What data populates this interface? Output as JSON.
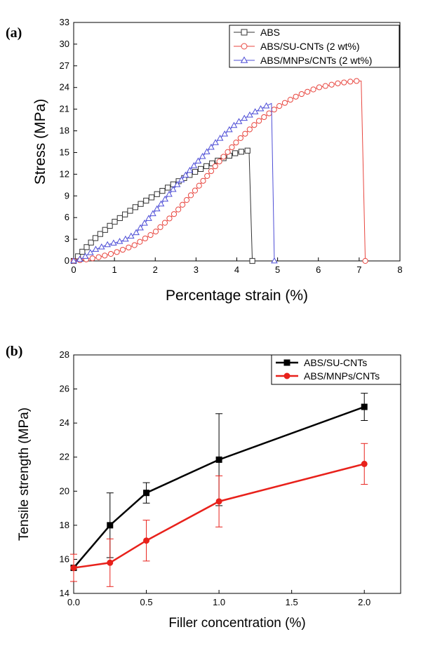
{
  "panels": {
    "a": {
      "label": "(a)"
    },
    "b": {
      "label": "(b)"
    }
  },
  "chart_data": [
    {
      "type": "line",
      "xlabel": "Percentage strain (%)",
      "ylabel": "Stress (MPa)",
      "xlim": [
        0,
        8
      ],
      "ylim": [
        0,
        33
      ],
      "xticks": [
        0,
        1,
        2,
        3,
        4,
        5,
        6,
        7,
        8
      ],
      "yticks": [
        0,
        3,
        6,
        9,
        12,
        15,
        18,
        21,
        24,
        27,
        30,
        33
      ],
      "grid": false,
      "legend": "top-right",
      "series": [
        {
          "name": "ABS",
          "color": "#333333",
          "marker": "square",
          "x": [
            0,
            0.2,
            0.5,
            1.0,
            1.5,
            2.0,
            2.5,
            3.0,
            3.5,
            4.0,
            4.3,
            4.38
          ],
          "y": [
            0,
            1.2,
            3.0,
            5.4,
            7.4,
            9.1,
            10.8,
            12.4,
            13.8,
            15.0,
            15.3,
            0
          ]
        },
        {
          "name": "ABS/SU-CNTs (2 wt%)",
          "color": "#e8463f",
          "marker": "circle",
          "x": [
            0,
            0.3,
            0.6,
            1.0,
            1.5,
            2.0,
            2.5,
            3.0,
            3.5,
            4.0,
            4.5,
            5.0,
            5.5,
            6.0,
            6.5,
            6.9,
            7.05,
            7.15
          ],
          "y": [
            0,
            0.2,
            0.5,
            1.1,
            2.2,
            4.0,
            6.7,
            9.9,
            13.3,
            16.5,
            19.2,
            21.3,
            22.9,
            24.0,
            24.6,
            24.9,
            24.9,
            0
          ]
        },
        {
          "name": "ABS/MNPs/CNTs (2 wt%)",
          "color": "#4d4dd6",
          "marker": "triangle",
          "x": [
            0,
            0.2,
            0.5,
            0.8,
            1.0,
            1.2,
            1.5,
            2.0,
            2.5,
            3.0,
            3.5,
            4.0,
            4.5,
            4.85,
            4.92
          ],
          "y": [
            0,
            0.3,
            1.5,
            2.2,
            2.5,
            2.8,
            3.7,
            6.9,
            10.3,
            13.5,
            16.5,
            19.1,
            20.8,
            21.8,
            0
          ]
        }
      ]
    },
    {
      "type": "line",
      "xlabel": "Filler concentration (%)",
      "ylabel": "Tensile strength (MPa)",
      "xlim": [
        0,
        2.25
      ],
      "ylim": [
        14,
        28
      ],
      "xticks": [
        0.0,
        0.5,
        1.0,
        1.5,
        2.0
      ],
      "xtick_labels": [
        "0.0",
        "0.5",
        "1.0",
        "1.5",
        "2.0"
      ],
      "yticks": [
        14,
        16,
        18,
        20,
        22,
        24,
        26,
        28
      ],
      "grid": false,
      "legend": "top-right",
      "categories": [
        0,
        0.25,
        0.5,
        1.0,
        2.0
      ],
      "series": [
        {
          "name": "ABS/SU-CNTs",
          "color": "#000000",
          "marker": "square",
          "values": [
            15.5,
            18.0,
            19.9,
            21.85,
            24.95
          ],
          "error": [
            0.0,
            1.9,
            0.6,
            2.7,
            0.8
          ]
        },
        {
          "name": "ABS/MNPs/CNTs",
          "color": "#e8211b",
          "marker": "circle",
          "values": [
            15.5,
            15.8,
            17.1,
            19.4,
            21.6
          ],
          "error": [
            0.8,
            1.4,
            1.2,
            1.5,
            1.2
          ]
        }
      ]
    }
  ]
}
